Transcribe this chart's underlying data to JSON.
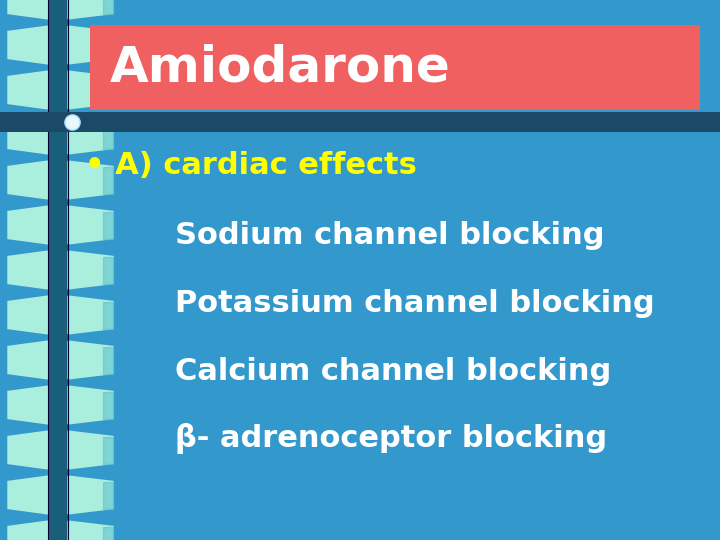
{
  "background_color": "#3399CC",
  "title": "Amiodarone",
  "title_bg_color": "#F06060",
  "title_text_color": "#FFFFFF",
  "bullet_text": "• A) cardiac effects",
  "bullet_color": "#FFFF00",
  "body_lines": [
    "Sodium channel blocking",
    "Potassium channel blocking",
    "Calcium channel blocking",
    "β- adrenoceptor blocking"
  ],
  "body_text_color": "#FFFFFF",
  "title_fontsize": 36,
  "bullet_fontsize": 22,
  "body_fontsize": 22,
  "ribbon_dark": "#1A5F7A",
  "ribbon_light": "#AAEEDD",
  "separator_color": "#1A4A66",
  "bullet_circle_color": "#E0F0FF"
}
